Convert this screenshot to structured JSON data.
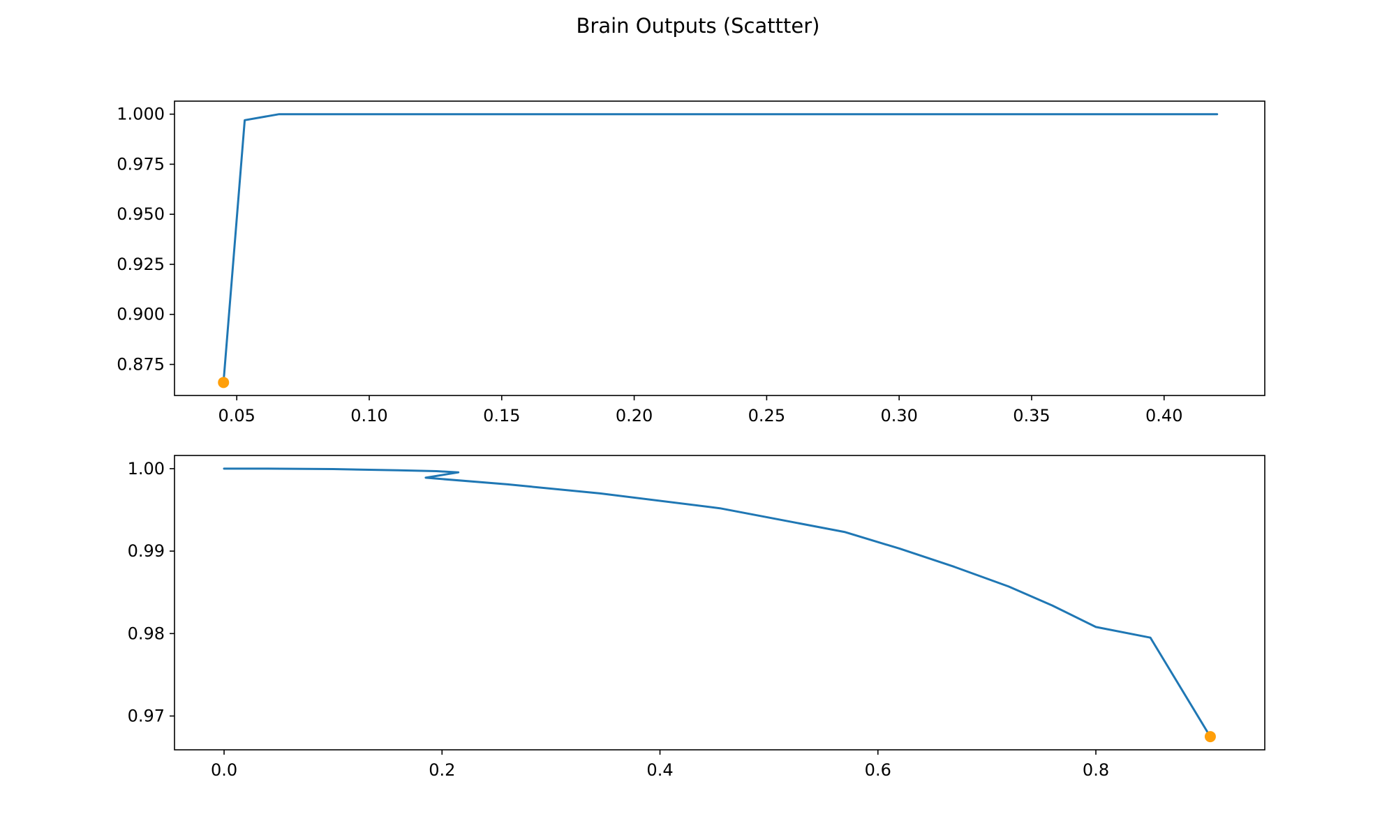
{
  "figure": {
    "title": "Brain Outputs (Scattter)"
  },
  "chart_data": [
    {
      "type": "line",
      "title": "",
      "xlabel": "",
      "ylabel": "",
      "xlim": [
        0.0265,
        0.438
      ],
      "ylim": [
        0.8595,
        1.0065
      ],
      "xticks": [
        0.05,
        0.1,
        0.15,
        0.2,
        0.25,
        0.3,
        0.35,
        0.4
      ],
      "xtick_labels": [
        "0.05",
        "0.10",
        "0.15",
        "0.20",
        "0.25",
        "0.30",
        "0.35",
        "0.40"
      ],
      "yticks": [
        0.875,
        0.9,
        0.925,
        0.95,
        0.975,
        1.0
      ],
      "ytick_labels": [
        "0.875",
        "0.900",
        "0.925",
        "0.950",
        "0.975",
        "1.000"
      ],
      "grid": false,
      "series": [
        {
          "type": "line",
          "color": "#1f77b4",
          "x": [
            0.045,
            0.053,
            0.066,
            0.087,
            0.16,
            0.42
          ],
          "y": [
            0.866,
            0.997,
            1.0,
            1.0,
            1.0,
            1.0
          ]
        },
        {
          "type": "scatter",
          "color": "#ff9f0a",
          "x": [
            0.045
          ],
          "y": [
            0.866
          ]
        }
      ]
    },
    {
      "type": "line",
      "title": "",
      "xlabel": "",
      "ylabel": "",
      "xlim": [
        -0.0455,
        0.955
      ],
      "ylim": [
        0.9659,
        1.0016
      ],
      "xticks": [
        0.0,
        0.2,
        0.4,
        0.6,
        0.8
      ],
      "xtick_labels": [
        "0.0",
        "0.2",
        "0.4",
        "0.6",
        "0.8"
      ],
      "yticks": [
        0.97,
        0.98,
        0.99,
        1.0
      ],
      "ytick_labels": [
        "0.97",
        "0.98",
        "0.99",
        "1.00"
      ],
      "grid": false,
      "series": [
        {
          "type": "line",
          "color": "#1f77b4",
          "x": [
            0.0,
            0.04,
            0.1,
            0.16,
            0.195,
            0.215,
            0.185,
            0.26,
            0.345,
            0.455,
            0.57,
            0.62,
            0.67,
            0.72,
            0.76,
            0.8,
            0.85,
            0.905
          ],
          "y": [
            1.0,
            1.0,
            0.99995,
            0.9998,
            0.9997,
            0.99955,
            0.9989,
            0.9981,
            0.997,
            0.9952,
            0.9923,
            0.9903,
            0.9881,
            0.9857,
            0.9834,
            0.9808,
            0.9795,
            0.9675
          ]
        },
        {
          "type": "scatter",
          "color": "#ff9f0a",
          "x": [
            0.905
          ],
          "y": [
            0.9675
          ]
        }
      ]
    }
  ]
}
